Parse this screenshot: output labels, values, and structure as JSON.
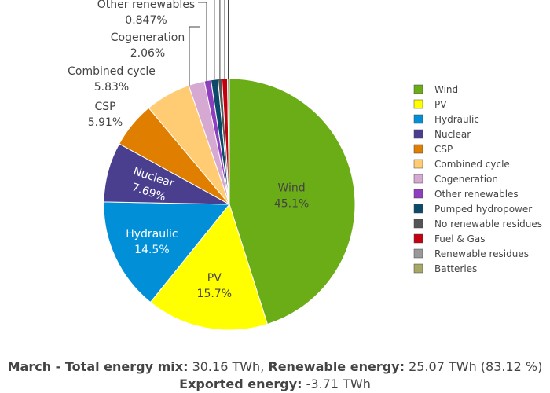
{
  "chart_data": {
    "type": "pie",
    "legend_position": "right",
    "slices": [
      {
        "label": "Wind",
        "value": 45.1,
        "display": "45.1%",
        "color": "#6aad16"
      },
      {
        "label": "PV",
        "value": 15.7,
        "display": "15.7%",
        "color": "#ffff00"
      },
      {
        "label": "Hydraulic",
        "value": 14.5,
        "display": "14.5%",
        "color": "#0190d8"
      },
      {
        "label": "Nuclear",
        "value": 7.69,
        "display": "7.69%",
        "color": "#4a3e8f"
      },
      {
        "label": "CSP",
        "value": 5.91,
        "display": "5.91%",
        "color": "#e07e00"
      },
      {
        "label": "Combined cycle",
        "value": 5.83,
        "display": "5.83%",
        "color": "#ffcc73"
      },
      {
        "label": "Cogeneration",
        "value": 2.06,
        "display": "2.06%",
        "color": "#d6a9d3"
      },
      {
        "label": "Other renewables",
        "value": 0.847,
        "display": "0.847%",
        "color": "#8e3fbf"
      },
      {
        "label": "Pumped hydropower",
        "value": 0.9,
        "display": "",
        "color": "#0c4a6a"
      },
      {
        "label": "No renewable residues",
        "value": 0.5,
        "display": "",
        "color": "#555555"
      },
      {
        "label": "Fuel & Gas",
        "value": 0.7,
        "display": "",
        "color": "#c2000e"
      },
      {
        "label": "Renewable residues",
        "value": 0.2,
        "display": "",
        "color": "#999999"
      },
      {
        "label": "Batteries",
        "value": 0.05,
        "display": "",
        "color": "#a8a866"
      }
    ]
  },
  "footer": {
    "line1_label": "March - Total energy mix:",
    "line1_value": " 30.16 TWh, ",
    "line1_label2": "Renewable energy:",
    "line1_value2": " 25.07 TWh (83.12 %)",
    "line2_label": "Exported energy:",
    "line2_value": " -3.71 TWh"
  }
}
